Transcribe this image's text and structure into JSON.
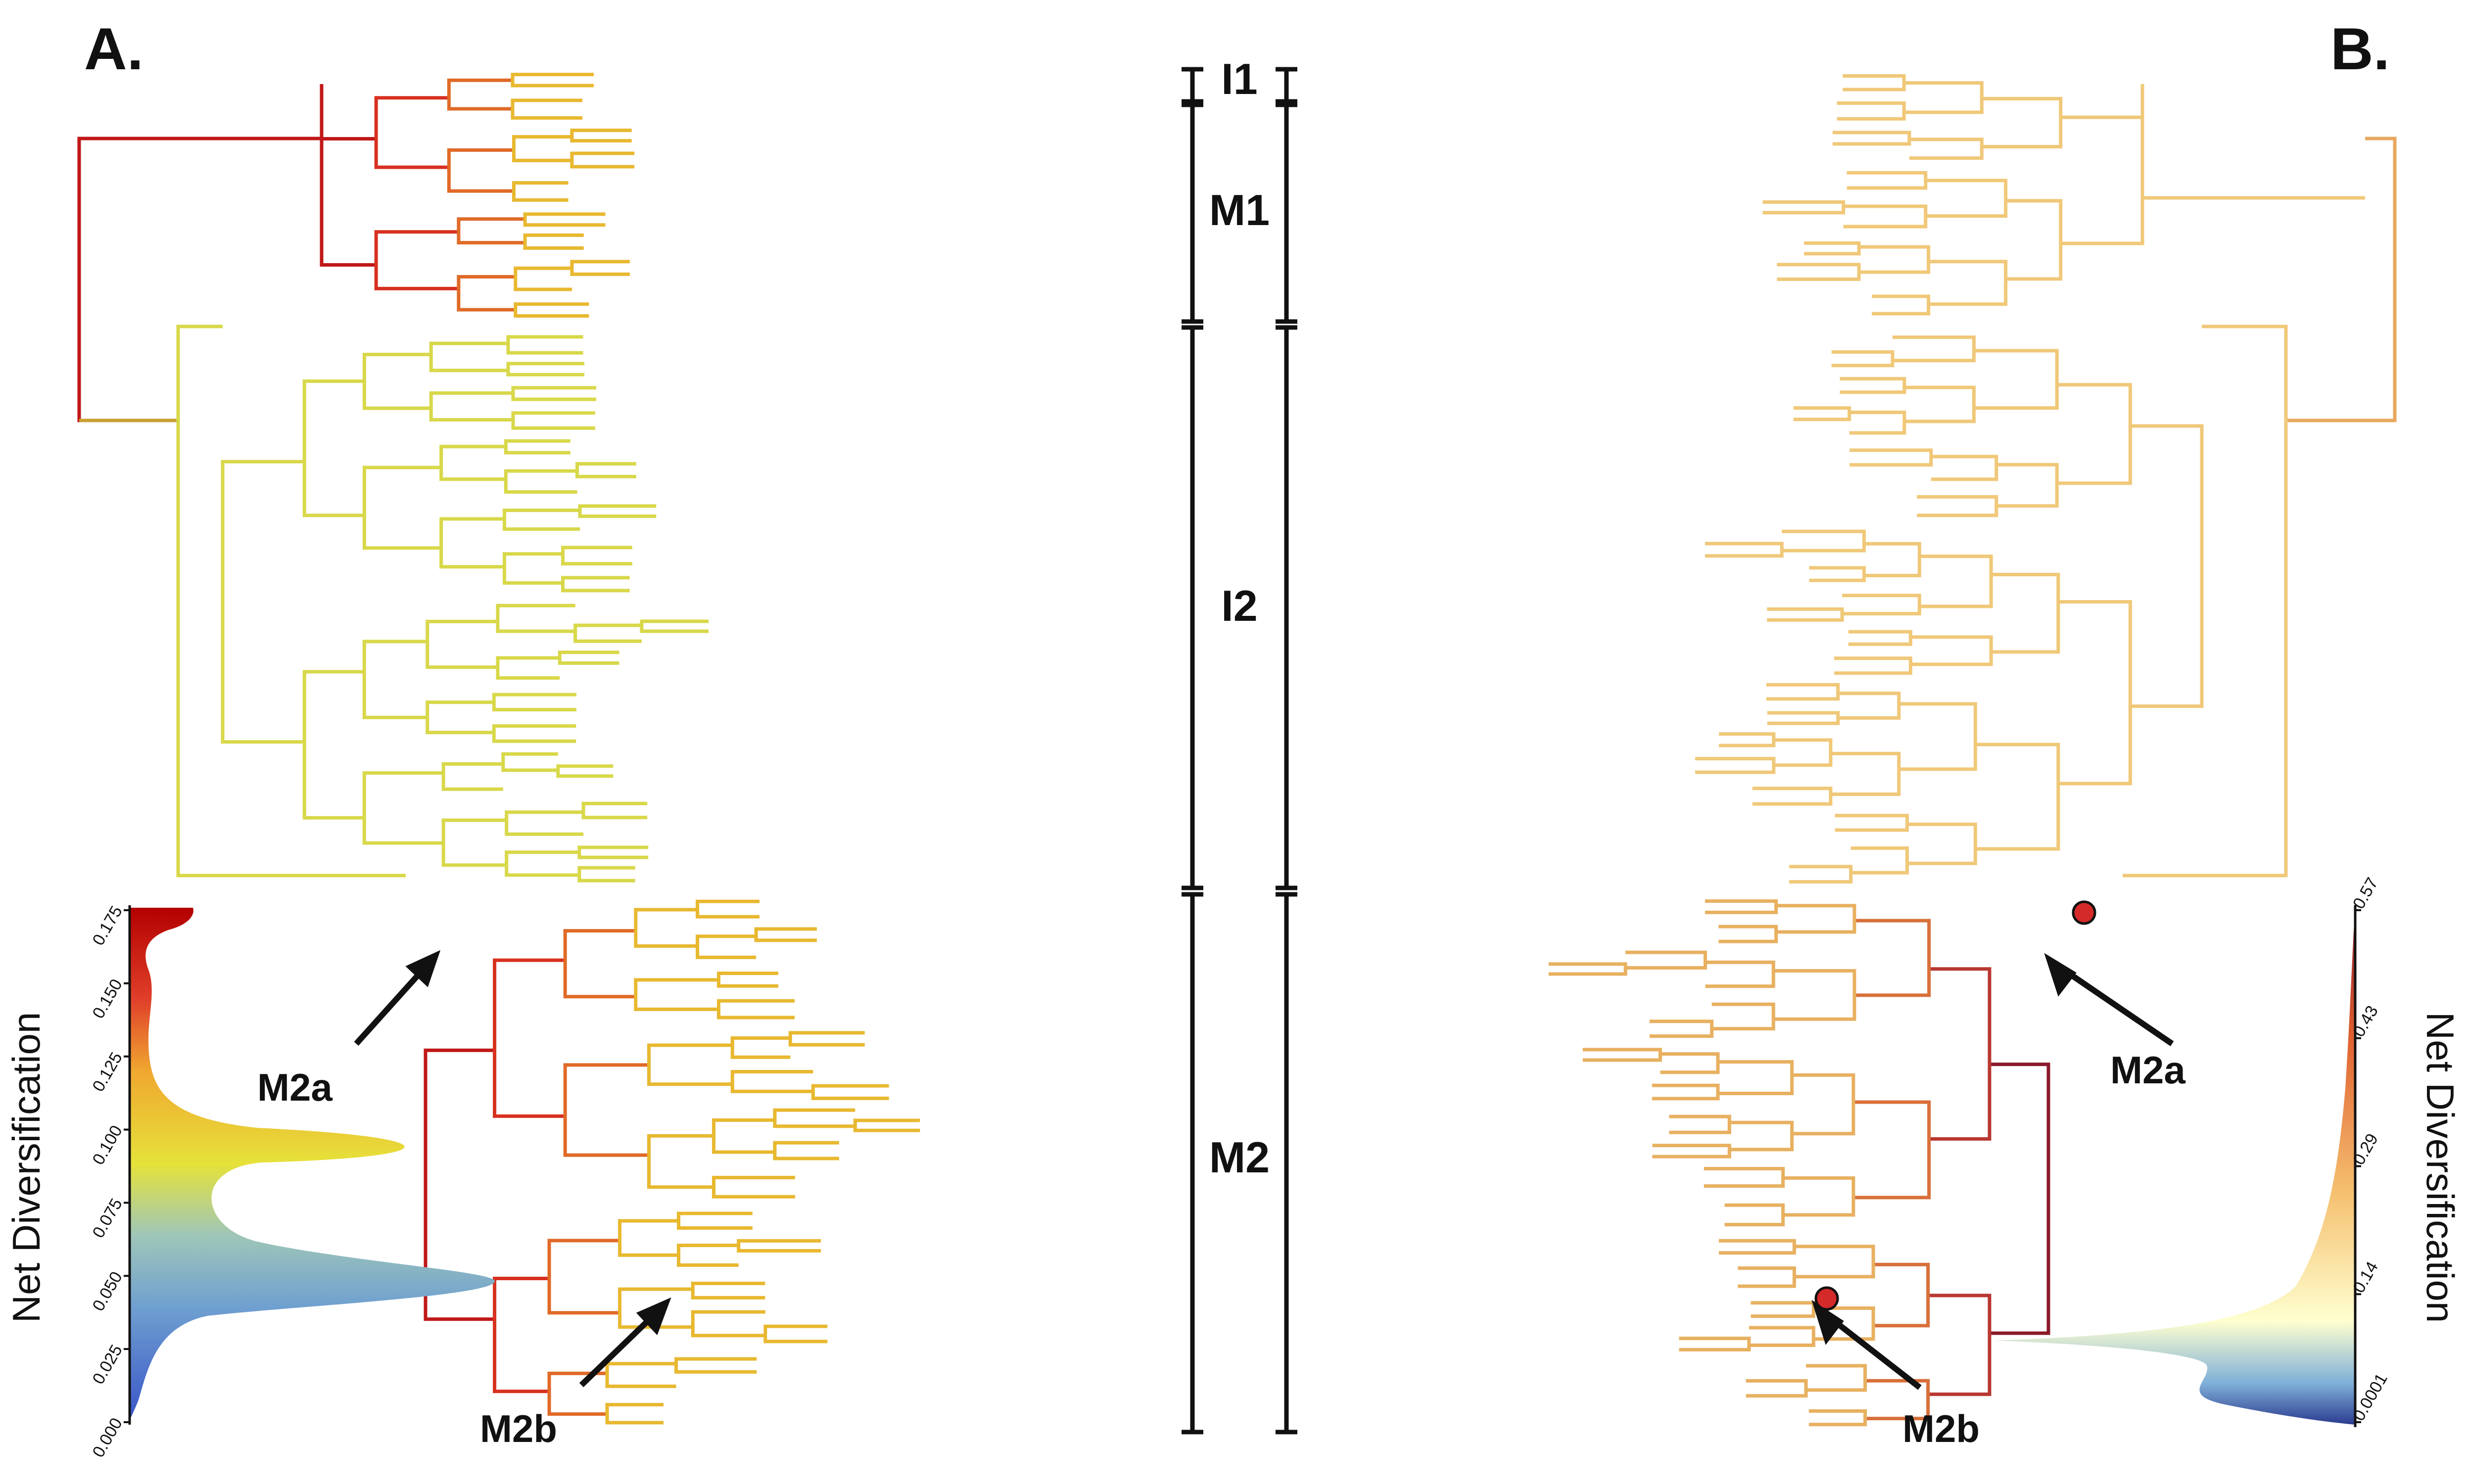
{
  "panels": {
    "left_letter": "A.",
    "right_letter": "B."
  },
  "clades": [
    {
      "id": "I1",
      "label": "I1"
    },
    {
      "id": "M1",
      "label": "M1"
    },
    {
      "id": "I2",
      "label": "I2"
    },
    {
      "id": "M2",
      "label": "M2"
    }
  ],
  "arrows": {
    "left_m2a": "M2a",
    "left_m2b": "M2b",
    "right_m2a": "M2a",
    "right_m2b": "M2b"
  },
  "legend_left": {
    "title": "Net Diversification",
    "ticks": [
      "0.000",
      "0.025",
      "0.050",
      "0.075",
      "0.100",
      "0.125",
      "0.150",
      "0.175"
    ],
    "gradient_colors": [
      "#3a55c8",
      "#6fa0d0",
      "#9fc6b8",
      "#e6e23a",
      "#f0a830",
      "#e0402a",
      "#b30000"
    ]
  },
  "legend_right": {
    "title": "Net Diversification",
    "ticks": [
      "0.0001",
      "0.14",
      "0.29",
      "0.43",
      "0.57"
    ],
    "gradient_colors": [
      "#2b3b8f",
      "#7fb0d8",
      "#ffffd0",
      "#f5c070",
      "#e06030",
      "#8b1a2a"
    ]
  },
  "colors": {
    "tip_blue": "#3d5fc8",
    "yellow": "#e2e04a",
    "red": "#c01818",
    "dot_red": "#d42a2a"
  }
}
